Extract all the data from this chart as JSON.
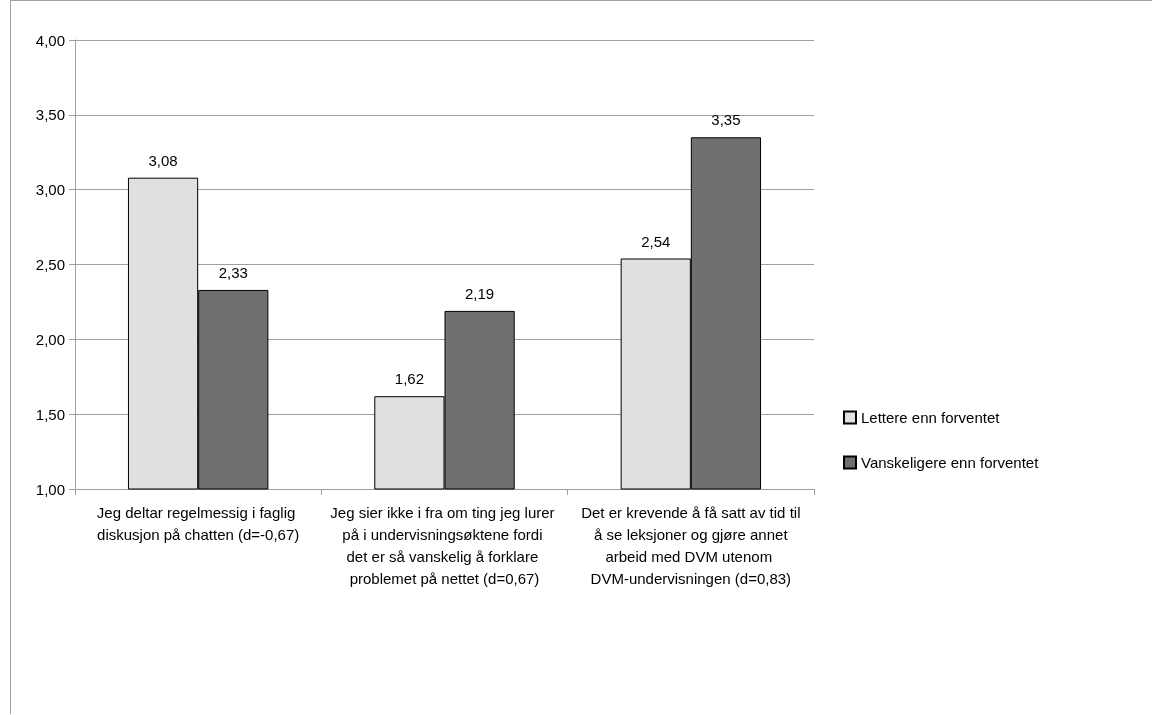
{
  "chart_data": {
    "type": "bar",
    "categories": [
      "Jeg deltar regelmessig i faglig diskusjon på chatten (d=-0,67)",
      "Jeg sier ikke i fra om ting jeg lurer på i undervisningsøktene fordi det er så vanskelig å forklare problemet på nettet (d=0,67)",
      "Det er krevende å få satt av tid til å se leksjoner og gjøre annet arbeid med DVM utenom DVM-undervisningen (d=0,83)"
    ],
    "series": [
      {
        "name": "Lettere enn forventet",
        "color": "#e0e0e0",
        "values": [
          3.08,
          1.62,
          2.54
        ],
        "value_labels": [
          "3,08",
          "1,62",
          "2,54"
        ]
      },
      {
        "name": "Vanskeligere enn forventet",
        "color": "#707070",
        "values": [
          2.33,
          2.19,
          3.35
        ],
        "value_labels": [
          "2,33",
          "2,19",
          "3,35"
        ]
      }
    ],
    "ylim": [
      1,
      4
    ],
    "yticks": [
      {
        "value": 1,
        "label": "1,00"
      },
      {
        "value": 1.5,
        "label": "1,50"
      },
      {
        "value": 2,
        "label": "2,00"
      },
      {
        "value": 2.5,
        "label": "2,50"
      },
      {
        "value": 3,
        "label": "3,00"
      },
      {
        "value": 3.5,
        "label": "3,50"
      },
      {
        "value": 4,
        "label": "4,00"
      }
    ],
    "grid": "y",
    "legend": "right"
  }
}
